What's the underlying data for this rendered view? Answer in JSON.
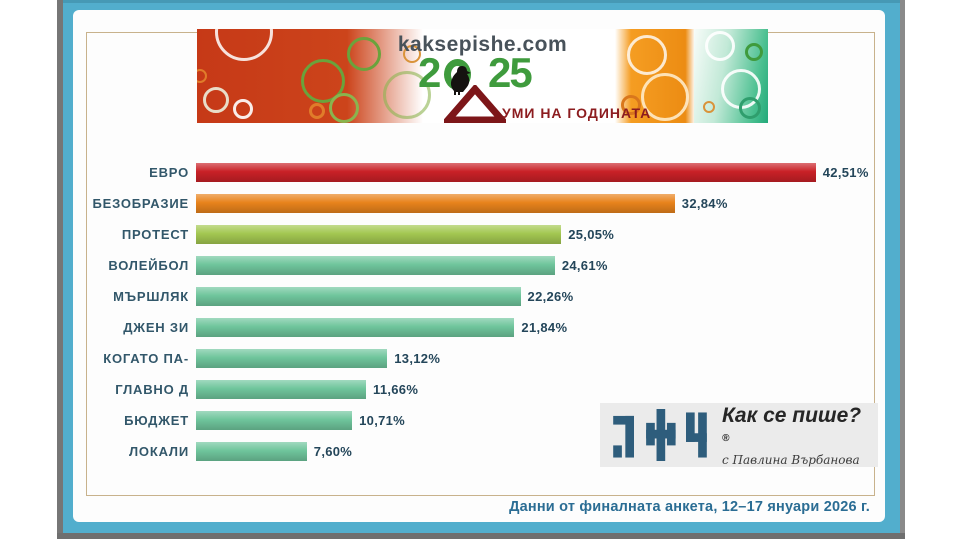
{
  "banner": {
    "site": "kaksepishe.com",
    "year_prefix": "2",
    "year_suffix": "25",
    "tagline": "УМИ НА ГОДИНАТА"
  },
  "chart_data": {
    "type": "bar",
    "orientation": "horizontal",
    "title": "Думи на годината 2025",
    "categories": [
      "ЕВРО",
      "БЕЗОБРАЗИЕ",
      "ПРОТЕСТ",
      "ВОЛЕЙБОЛ",
      "МЪРШЛЯК",
      "ДЖЕН ЗИ",
      "КОГАТО ПА-",
      "ГЛАВНО Д",
      "БЮДЖЕТ",
      "ЛОКАЛИ"
    ],
    "values": [
      42.51,
      32.84,
      25.05,
      24.61,
      22.26,
      21.84,
      13.12,
      11.66,
      10.71,
      7.6
    ],
    "value_labels": [
      "42,51%",
      "32,84%",
      "25,05%",
      "24,61%",
      "22,26%",
      "21,84%",
      "13,12%",
      "11,66%",
      "10,71%",
      "7,60%"
    ],
    "bar_colors": [
      "#c92127",
      "#e8831c",
      "#a3c751",
      "#6fc59c",
      "#6fc59c",
      "#6fc59c",
      "#6fc59c",
      "#6fc59c",
      "#6fc59c",
      "#6fc59c"
    ],
    "xlim": [
      0,
      45
    ],
    "grid": false,
    "legend": null
  },
  "logo": {
    "brand": "Как се пише?",
    "registered": "®",
    "subtitle": "с Павлина Върбанова"
  },
  "footer": {
    "text": "Данни от финалната анкета, 12–17 януари 2026 г."
  },
  "colors": {
    "frame_teal": "#52aecd",
    "frame_gray": "#767676",
    "card_bg": "#fdfdfd",
    "inner_border_tan": "#c8b28c",
    "label_text": "#32576a",
    "value_text": "#24465a",
    "footer_text": "#2b6d94",
    "logo_teal": "#2e5d7c",
    "banner_red": "#c63917",
    "banner_orange": "#ec8c13",
    "banner_green_teal": "#23a97a",
    "year_green": "#3f9b3d",
    "tagline_maroon": "#8c1c1f"
  }
}
